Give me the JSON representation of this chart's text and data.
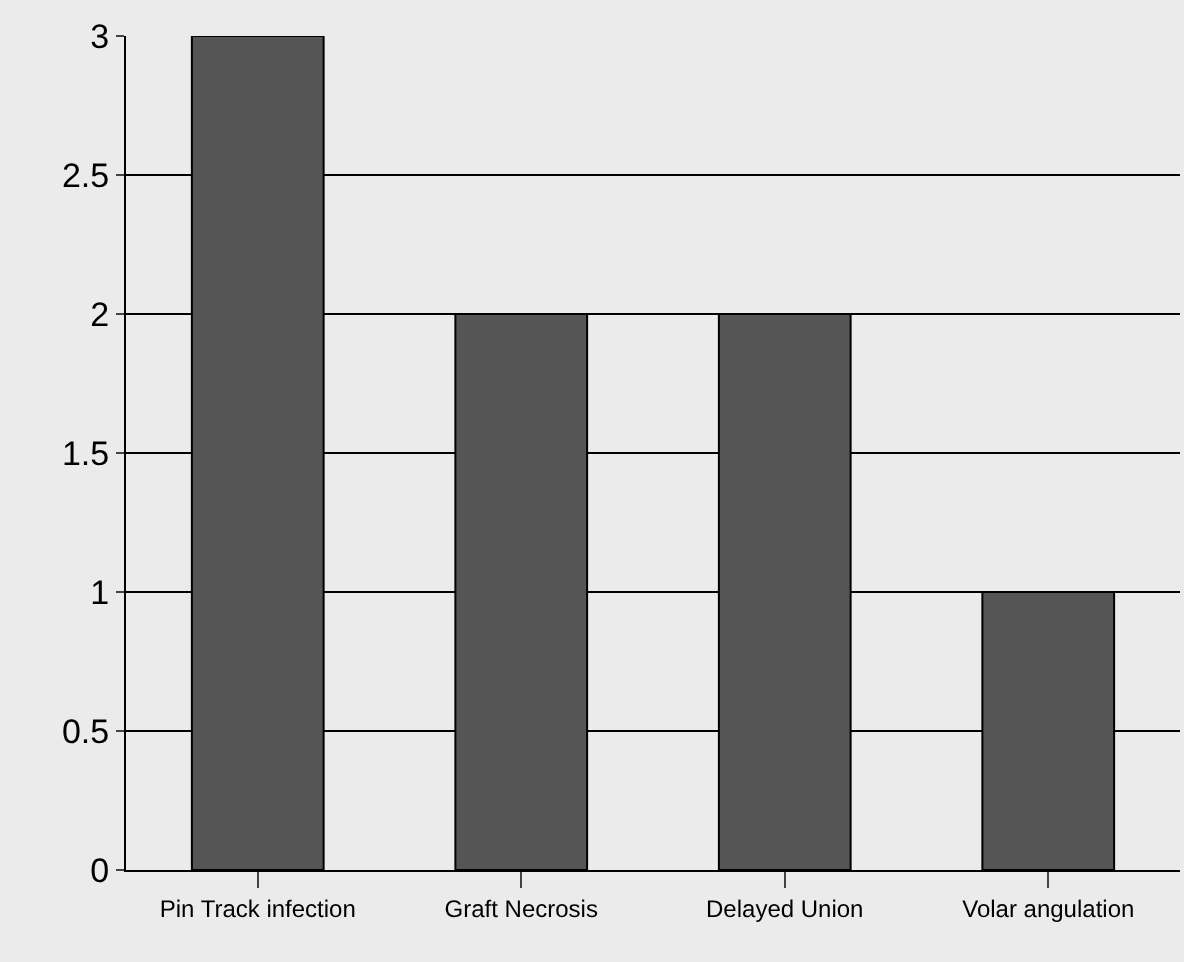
{
  "chart_data": {
    "type": "bar",
    "categories": [
      "Pin Track infection",
      "Graft Necrosis",
      "Delayed Union",
      "Volar angulation"
    ],
    "values": [
      3,
      2,
      2,
      1
    ],
    "color": "#555555",
    "ylim": [
      0,
      3
    ],
    "yticks": [
      0,
      0.5,
      1,
      1.5,
      2,
      2.5,
      3
    ],
    "grid": "y",
    "legend": false
  }
}
